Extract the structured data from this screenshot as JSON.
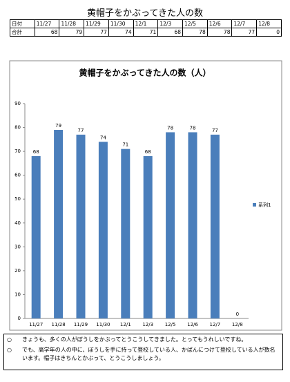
{
  "header": {
    "title": "黄帽子をかぶってきた人の数"
  },
  "table": {
    "rows": [
      [
        "日付",
        "11/27",
        "11/28",
        "11/29",
        "11/30",
        "12/1",
        "12/3",
        "12/5",
        "12/6",
        "12/7",
        "12/8"
      ],
      [
        "合計",
        68,
        79,
        77,
        74,
        71,
        68,
        78,
        78,
        77,
        0
      ]
    ]
  },
  "chart_data": {
    "type": "bar",
    "title": "黄帽子をかぶってきた人の数（人）",
    "categories": [
      "11/27",
      "11/28",
      "11/29",
      "11/30",
      "12/1",
      "12/3",
      "12/5",
      "12/6",
      "12/7",
      "12/8"
    ],
    "series": [
      {
        "name": "系列1",
        "color": "#4a7ebb",
        "values": [
          68,
          79,
          77,
          74,
          71,
          68,
          78,
          78,
          77,
          0
        ]
      }
    ],
    "ylim": [
      0,
      90
    ],
    "yticks": [
      0,
      10,
      20,
      30,
      40,
      50,
      60,
      70,
      80,
      90
    ],
    "grid": false,
    "legend": "right",
    "data_labels": true
  },
  "notes": [
    {
      "bullet": "○",
      "text": "きょうも、多くの人がぼうしをかぶってとうこうしてきました。とってもうれしいですね。"
    },
    {
      "bullet": "○",
      "text": "でも、高学年の人の中に、ぼうしを手に持って登校している人、かばんにつけて登校している人が数名います。帽子はきちんとかぶって、とうこうしましょう。"
    }
  ]
}
